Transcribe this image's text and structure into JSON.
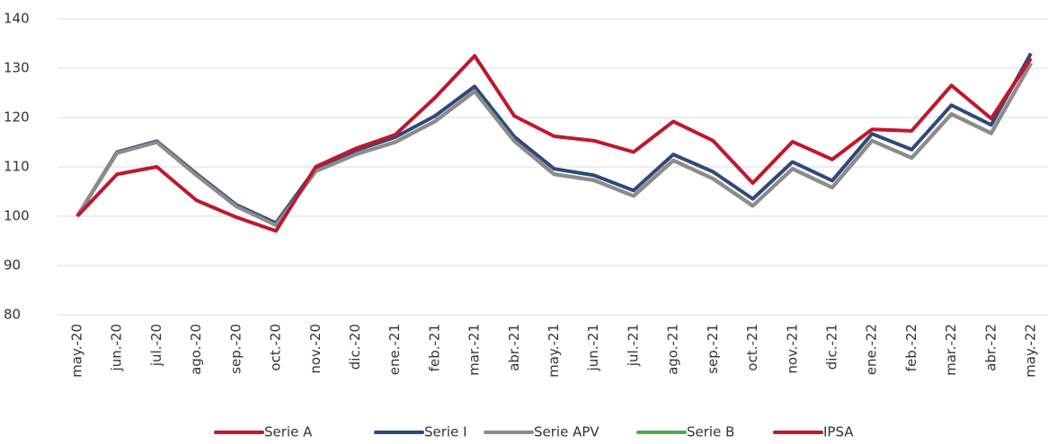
{
  "chart_data": {
    "type": "line",
    "categories": [
      "may.-20",
      "jun.-20",
      "jul.-20",
      "ago.-20",
      "sep.-20",
      "oct.-20",
      "nov.-20",
      "dic.-20",
      "ene.-21",
      "feb.-21",
      "mar.-21",
      "abr.-21",
      "may.-21",
      "jun.-21",
      "jul.-21",
      "ago.-21",
      "sep.-21",
      "oct.-21",
      "nov.-21",
      "dic.-21",
      "ene.-22",
      "feb.-22",
      "mar.-22",
      "abr.-22",
      "may.-22"
    ],
    "series": [
      {
        "name": "Serie A",
        "color": "#c0172d",
        "values": [
          100,
          112.8,
          115,
          108.3,
          102,
          98.2,
          109.1,
          112.5,
          115,
          119.2,
          125.3,
          115.2,
          108.5,
          107.3,
          104.1,
          111.3,
          107.6,
          102.1,
          109.6,
          105.8,
          115.3,
          111.8,
          120.7,
          116.8,
          131
        ]
      },
      {
        "name": "Serie I",
        "color": "#2d4a7a",
        "values": [
          100,
          113,
          115.2,
          108.6,
          102.3,
          98.6,
          109.7,
          113.3,
          116,
          120.3,
          126.3,
          116.1,
          109.6,
          108.3,
          105.2,
          112.5,
          109,
          103.5,
          111,
          107.2,
          116.7,
          113.5,
          122.5,
          118.5,
          133
        ]
      },
      {
        "name": "Serie APV",
        "color": "#8c8c8c",
        "values": [
          100,
          112.8,
          115,
          108.3,
          102,
          98.2,
          109.1,
          112.5,
          115,
          119.2,
          125.3,
          115.2,
          108.5,
          107.3,
          104.1,
          111.3,
          107.6,
          102.1,
          109.6,
          105.8,
          115.3,
          111.8,
          120.7,
          116.8,
          131
        ]
      },
      {
        "name": "Serie B",
        "color": "#4caf50",
        "values": [
          100,
          112.8,
          115,
          108.3,
          102,
          98.2,
          109.1,
          112.5,
          115,
          119.2,
          125.3,
          115.2,
          108.5,
          107.3,
          104.1,
          111.3,
          107.6,
          102.1,
          109.6,
          105.8,
          115.3,
          111.8,
          120.7,
          116.8,
          131
        ]
      },
      {
        "name": "IPSA",
        "color": "#c0172d",
        "values": [
          100,
          108.5,
          110,
          103.2,
          99.8,
          97,
          110,
          113.7,
          116.5,
          124,
          132.5,
          120.3,
          116.2,
          115.3,
          113,
          119.2,
          115.3,
          106.7,
          115.1,
          111.5,
          117.6,
          117.3,
          126.5,
          119.8,
          132
        ]
      }
    ],
    "ylim": [
      80,
      140
    ],
    "yticks": [
      80,
      90,
      100,
      110,
      120,
      130,
      140
    ],
    "grid": true
  }
}
